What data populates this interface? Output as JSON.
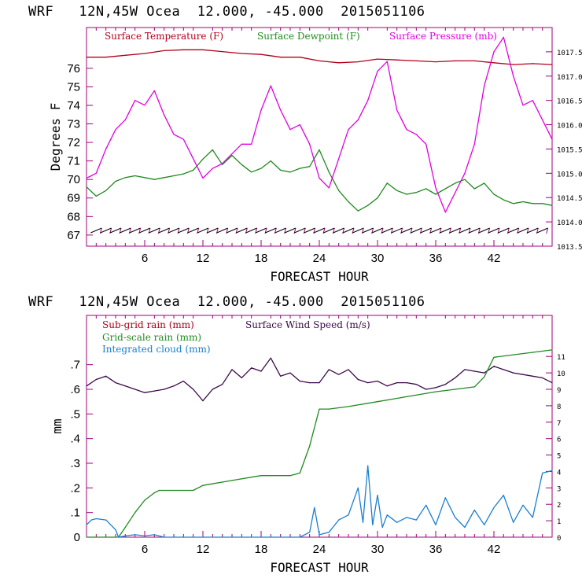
{
  "header": {
    "top": "WRF   12N,45W Ocea  12.000, -45.000  2015051106",
    "bottom": "WRF   12N,45W Ocea  12.000, -45.000  2015051106"
  },
  "colors": {
    "temperature": "#b0001a",
    "dewpoint": "#208a20",
    "pressure": "#e000e0",
    "subgrid_rain": "#b0001a",
    "wind": "#3a0a4a",
    "gridscale_rain": "#208a20",
    "cloud": "#1a7fd0",
    "frame": "#a0007a"
  },
  "chart_data": [
    {
      "type": "line",
      "xlabel": "FORECAST HOUR",
      "ylabel": "Degrees F",
      "x_ticks": [
        6,
        12,
        18,
        24,
        30,
        36,
        42
      ],
      "xlim": [
        0,
        48
      ],
      "ylim": [
        66.4,
        78.2
      ],
      "y_ticks": [
        67,
        68,
        69,
        70,
        71,
        72,
        73,
        74,
        75,
        76
      ],
      "y2_ticks": [
        "1013.5",
        "1014.0",
        "1014.5",
        "1015.0",
        "1015.5",
        "1016.0",
        "1016.5",
        "1017.0",
        "1017.5"
      ],
      "y2lim": [
        1013.5,
        1018.0
      ],
      "legend": [
        "Surface Temperature (F)",
        "Surface Dewpoint (F)",
        "Surface Pressure (mb)"
      ],
      "series": [
        {
          "name": "Surface Temperature (F)",
          "axis": "left",
          "x": [
            0,
            2,
            4,
            6,
            8,
            10,
            12,
            14,
            16,
            18,
            20,
            22,
            24,
            26,
            28,
            30,
            32,
            34,
            36,
            38,
            40,
            42,
            44,
            46,
            48
          ],
          "values": [
            76.6,
            76.6,
            76.7,
            76.8,
            76.95,
            77.0,
            77.0,
            76.9,
            76.8,
            76.75,
            76.6,
            76.6,
            76.4,
            76.3,
            76.35,
            76.5,
            76.45,
            76.4,
            76.35,
            76.4,
            76.4,
            76.3,
            76.2,
            76.25,
            76.2
          ]
        },
        {
          "name": "Surface Dewpoint (F)",
          "axis": "left",
          "x": [
            0,
            1,
            2,
            3,
            4,
            5,
            6,
            7,
            8,
            9,
            10,
            11,
            12,
            13,
            14,
            15,
            16,
            17,
            18,
            19,
            20,
            21,
            22,
            23,
            24,
            25,
            26,
            27,
            28,
            29,
            30,
            31,
            32,
            33,
            34,
            35,
            36,
            37,
            38,
            39,
            40,
            41,
            42,
            43,
            44,
            45,
            46,
            47,
            48
          ],
          "values": [
            69.6,
            69.1,
            69.4,
            69.9,
            70.1,
            70.2,
            70.1,
            70.0,
            70.1,
            70.2,
            70.3,
            70.5,
            71.1,
            71.6,
            70.8,
            71.3,
            70.8,
            70.4,
            70.6,
            71.0,
            70.5,
            70.4,
            70.6,
            70.7,
            71.6,
            70.4,
            69.4,
            68.8,
            68.3,
            68.6,
            69.0,
            69.8,
            69.4,
            69.2,
            69.3,
            69.5,
            69.2,
            69.5,
            69.8,
            70.0,
            69.5,
            69.8,
            69.2,
            68.9,
            68.7,
            68.8,
            68.7,
            68.7,
            68.6
          ]
        },
        {
          "name": "Surface Pressure (mb)",
          "axis": "right",
          "x": [
            0,
            1,
            2,
            3,
            4,
            5,
            6,
            7,
            8,
            9,
            10,
            11,
            12,
            13,
            14,
            15,
            16,
            17,
            18,
            19,
            20,
            21,
            22,
            23,
            24,
            25,
            26,
            27,
            28,
            29,
            30,
            31,
            32,
            33,
            34,
            35,
            36,
            37,
            38,
            39,
            40,
            41,
            42,
            43,
            44,
            45,
            46,
            47,
            48
          ],
          "values": [
            1014.9,
            1015.0,
            1015.5,
            1015.9,
            1016.1,
            1016.5,
            1016.4,
            1016.7,
            1016.2,
            1015.8,
            1015.7,
            1015.3,
            1014.9,
            1015.1,
            1015.2,
            1015.4,
            1015.6,
            1015.6,
            1016.3,
            1016.8,
            1016.3,
            1015.9,
            1016.0,
            1015.6,
            1014.9,
            1014.7,
            1015.3,
            1015.9,
            1016.1,
            1016.5,
            1017.1,
            1017.3,
            1016.3,
            1015.9,
            1015.8,
            1015.6,
            1014.7,
            1014.2,
            1014.6,
            1015.0,
            1015.6,
            1016.8,
            1017.5,
            1017.8,
            1017.0,
            1016.4,
            1016.5,
            1016.1,
            1015.7
          ]
        }
      ]
    },
    {
      "type": "line",
      "xlabel": "FORECAST HOUR",
      "ylabel": "mm",
      "x_ticks": [
        6,
        12,
        18,
        24,
        30,
        36,
        42
      ],
      "xlim": [
        0,
        48
      ],
      "ylim": [
        0,
        0.9
      ],
      "y_ticks": [
        0,
        ".1",
        ".2",
        ".3",
        ".4",
        ".5",
        ".6",
        ".7"
      ],
      "y2_ticks": [
        0,
        1,
        2,
        3,
        4,
        5,
        6,
        7,
        8,
        9,
        10,
        11
      ],
      "y2lim": [
        0,
        13.5
      ],
      "legend": [
        "Sub-grid rain (mm)",
        "Surface Wind Speed (m/s)",
        "Grid-scale rain (mm)",
        "Integrated cloud (mm)"
      ],
      "series": [
        {
          "name": "Surface Wind Speed (m/s)",
          "axis": "right",
          "x": [
            0,
            1,
            2,
            3,
            4,
            5,
            6,
            7,
            8,
            9,
            10,
            11,
            12,
            13,
            14,
            15,
            16,
            17,
            18,
            19,
            20,
            21,
            22,
            23,
            24,
            25,
            26,
            27,
            28,
            29,
            30,
            31,
            32,
            33,
            34,
            35,
            36,
            37,
            38,
            39,
            40,
            41,
            42,
            43,
            44,
            45,
            46,
            47,
            48
          ],
          "values": [
            9.2,
            9.6,
            9.8,
            9.4,
            9.2,
            9.0,
            8.8,
            8.9,
            9.0,
            9.2,
            9.5,
            9.0,
            8.3,
            9.0,
            9.3,
            10.2,
            9.7,
            10.3,
            10.1,
            10.9,
            9.8,
            10.0,
            9.5,
            9.4,
            9.4,
            10.2,
            9.9,
            10.2,
            9.6,
            9.4,
            9.5,
            9.2,
            9.4,
            9.4,
            9.3,
            9.0,
            9.1,
            9.3,
            9.7,
            10.2,
            10.1,
            10.0,
            10.4,
            10.2,
            10.0,
            9.9,
            9.8,
            9.7,
            9.4
          ]
        },
        {
          "name": "Grid-scale rain (mm)",
          "axis": "left",
          "x": [
            0,
            3.3,
            4,
            5,
            6,
            7,
            7.5,
            11,
            12,
            15,
            18,
            21,
            22,
            23,
            24,
            25,
            27,
            30,
            33,
            36,
            38,
            40,
            41,
            42,
            44,
            46,
            48
          ],
          "values": [
            0,
            0,
            0.04,
            0.1,
            0.15,
            0.18,
            0.19,
            0.19,
            0.21,
            0.23,
            0.25,
            0.25,
            0.26,
            0.37,
            0.52,
            0.52,
            0.53,
            0.55,
            0.57,
            0.59,
            0.6,
            0.61,
            0.65,
            0.73,
            0.74,
            0.75,
            0.76
          ]
        },
        {
          "name": "Integrated cloud (mm)",
          "axis": "left",
          "x": [
            0,
            0.5,
            1,
            2,
            3,
            3.3,
            4,
            5,
            6,
            7,
            8,
            10,
            12,
            14,
            18,
            22,
            23,
            23.5,
            24,
            25,
            26,
            27,
            28,
            28.5,
            29,
            29.5,
            30,
            30.5,
            31,
            32,
            33,
            34,
            35,
            36,
            37,
            38,
            39,
            40,
            41,
            42,
            43,
            44,
            45,
            46,
            47,
            48
          ],
          "values": [
            0.05,
            0.07,
            0.075,
            0.07,
            0.03,
            0,
            0.005,
            0.01,
            0.005,
            0.01,
            0,
            0,
            0,
            0,
            0,
            0,
            0.02,
            0.12,
            0.01,
            0.02,
            0.07,
            0.09,
            0.2,
            0.06,
            0.29,
            0.05,
            0.17,
            0.04,
            0.09,
            0.06,
            0.08,
            0.07,
            0.13,
            0.05,
            0.16,
            0.08,
            0.04,
            0.11,
            0.05,
            0.12,
            0.17,
            0.06,
            0.13,
            0.08,
            0.26,
            0.27
          ]
        }
      ]
    }
  ]
}
